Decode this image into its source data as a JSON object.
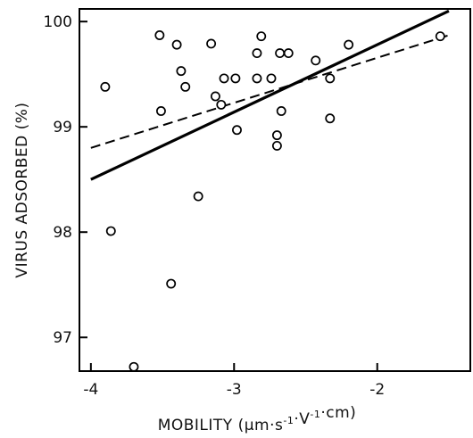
{
  "chart_data": {
    "type": "scatter",
    "xlabel": "MOBILITY",
    "xlabel_units": {
      "open": "(",
      "parts": [
        {
          "text": "μm·s",
          "sup": "-1"
        },
        {
          "text": "·V",
          "sup": "-1"
        },
        {
          "text": "·cm",
          "sup": ""
        }
      ],
      "close": ")"
    },
    "ylabel": "VIRUS ADSORBED (%)",
    "xlim": [
      -4.08,
      -1.35
    ],
    "ylim": [
      96.68,
      100.12
    ],
    "x_ticks": [
      -4,
      -3,
      -2
    ],
    "x_tick_labels": [
      "-4",
      "-3",
      "-2"
    ],
    "y_ticks": [
      97,
      98,
      99,
      100
    ],
    "y_tick_labels": [
      "97",
      "98",
      "99",
      "100"
    ],
    "points": [
      {
        "x": -3.9,
        "y": 99.38
      },
      {
        "x": -3.86,
        "y": 98.01
      },
      {
        "x": -3.7,
        "y": 96.72
      },
      {
        "x": -3.52,
        "y": 99.87
      },
      {
        "x": -3.51,
        "y": 99.15
      },
      {
        "x": -3.44,
        "y": 97.51
      },
      {
        "x": -3.4,
        "y": 99.78
      },
      {
        "x": -3.37,
        "y": 99.53
      },
      {
        "x": -3.34,
        "y": 99.38
      },
      {
        "x": -3.25,
        "y": 98.34
      },
      {
        "x": -3.16,
        "y": 99.79
      },
      {
        "x": -3.13,
        "y": 99.29
      },
      {
        "x": -3.09,
        "y": 99.21
      },
      {
        "x": -3.07,
        "y": 99.46
      },
      {
        "x": -2.99,
        "y": 99.46
      },
      {
        "x": -2.98,
        "y": 98.97
      },
      {
        "x": -2.84,
        "y": 99.7
      },
      {
        "x": -2.84,
        "y": 99.46
      },
      {
        "x": -2.81,
        "y": 99.86
      },
      {
        "x": -2.74,
        "y": 99.46
      },
      {
        "x": -2.7,
        "y": 98.92
      },
      {
        "x": -2.7,
        "y": 98.82
      },
      {
        "x": -2.68,
        "y": 99.7
      },
      {
        "x": -2.67,
        "y": 99.15
      },
      {
        "x": -2.62,
        "y": 99.7
      },
      {
        "x": -2.43,
        "y": 99.63
      },
      {
        "x": -2.33,
        "y": 99.46
      },
      {
        "x": -2.33,
        "y": 99.08
      },
      {
        "x": -2.2,
        "y": 99.78
      },
      {
        "x": -1.56,
        "y": 99.86
      }
    ],
    "lines": [
      {
        "style": "solid",
        "x": [
          -4.0,
          -1.5
        ],
        "y": [
          98.5,
          100.1
        ]
      },
      {
        "style": "dashed",
        "x": [
          -4.0,
          -1.5
        ],
        "y": [
          98.8,
          99.87
        ]
      }
    ],
    "grid": false,
    "legend": "none"
  }
}
